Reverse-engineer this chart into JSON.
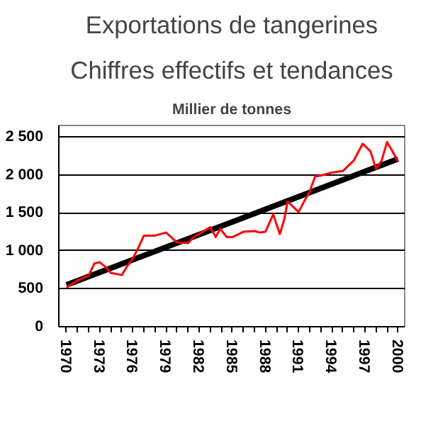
{
  "chart_data": {
    "type": "line",
    "title": "Exportations de tangerines",
    "subtitle": "Chiffres effectifs et tendances",
    "ylabel": "Millier de tonnes",
    "series": [
      {
        "color": "#ff0000",
        "x": [
          1970,
          1971,
          1972,
          1972.5,
          1973,
          1973.5,
          1974,
          1975,
          1975.5,
          1976,
          1976.5,
          1977,
          1978,
          1979,
          1980,
          1981,
          1981.5,
          1983,
          1983.5,
          1983.9,
          1984.5,
          1985,
          1986,
          1987,
          1987.5,
          1988,
          1988.7,
          1989.3,
          1989.7,
          1990,
          1991,
          1991.5,
          1992,
          1992.5,
          1993,
          1994,
          1995,
          1996,
          1996.8,
          1997.5,
          1998,
          1998.5,
          1999,
          1999.5,
          2000
        ],
        "values": [
          520,
          610,
          670,
          830,
          850,
          790,
          710,
          680,
          800,
          900,
          1040,
          1200,
          1200,
          1240,
          1110,
          1100,
          1180,
          1310,
          1180,
          1290,
          1180,
          1180,
          1250,
          1260,
          1240,
          1250,
          1480,
          1220,
          1410,
          1650,
          1510,
          1650,
          1780,
          1980,
          1990,
          2030,
          2050,
          2190,
          2410,
          2310,
          2080,
          2180,
          2430,
          2310,
          2170
        ],
        "line_style": "solid"
      },
      {
        "color": "#000000",
        "x": [
          1970,
          2000
        ],
        "values": [
          550,
          2210
        ],
        "line_style": "solid"
      }
    ],
    "xlim": [
      1969.3,
      2000.6
    ],
    "ylim": [
      0,
      2650
    ],
    "xticks": [
      {
        "value": 1970,
        "label": "1970"
      },
      {
        "value": 1971,
        "label": null
      },
      {
        "value": 1972,
        "label": null
      },
      {
        "value": 1973,
        "label": "1973"
      },
      {
        "value": 1974,
        "label": null
      },
      {
        "value": 1975,
        "label": null
      },
      {
        "value": 1976,
        "label": "1976"
      },
      {
        "value": 1977,
        "label": null
      },
      {
        "value": 1978,
        "label": null
      },
      {
        "value": 1979,
        "label": "1979"
      },
      {
        "value": 1980,
        "label": null
      },
      {
        "value": 1981,
        "label": null
      },
      {
        "value": 1982,
        "label": "1982"
      },
      {
        "value": 1983,
        "label": null
      },
      {
        "value": 1984,
        "label": null
      },
      {
        "value": 1985,
        "label": "1985"
      },
      {
        "value": 1986,
        "label": null
      },
      {
        "value": 1987,
        "label": null
      },
      {
        "value": 1988,
        "label": "1988"
      },
      {
        "value": 1989,
        "label": null
      },
      {
        "value": 1990,
        "label": null
      },
      {
        "value": 1991,
        "label": "1991"
      },
      {
        "value": 1992,
        "label": null
      },
      {
        "value": 1993,
        "label": null
      },
      {
        "value": 1994,
        "label": "1994"
      },
      {
        "value": 1995,
        "label": null
      },
      {
        "value": 1996,
        "label": null
      },
      {
        "value": 1997,
        "label": "1997"
      },
      {
        "value": 1998,
        "label": null
      },
      {
        "value": 1999,
        "label": null
      },
      {
        "value": 2000,
        "label": "2000"
      }
    ],
    "yticks": [
      0,
      500,
      {
        "value": 1000,
        "label": "1 000"
      },
      {
        "value": 1500,
        "label": "1 500"
      },
      {
        "value": 2000,
        "label": "2 000"
      },
      {
        "value": 2500,
        "label": "2 500"
      }
    ],
    "grid": "y",
    "marker": "none"
  }
}
